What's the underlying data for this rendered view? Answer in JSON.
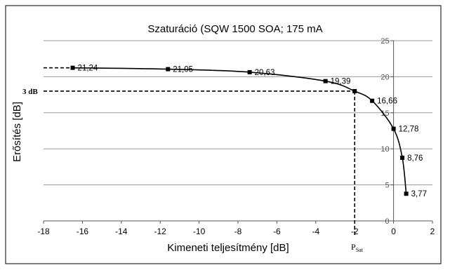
{
  "chart_data": {
    "type": "scatter",
    "title": "Szaturáció (SQW 1500 SOA; 175 mA",
    "xlabel": "Kimeneti teljesítmény [dB]",
    "ylabel": "Erősítés [dB]",
    "xlim": [
      -18,
      2
    ],
    "ylim": [
      0,
      25
    ],
    "x_ticks": [
      -18,
      -16,
      -14,
      -12,
      -10,
      -8,
      -6,
      -4,
      -2,
      0,
      2
    ],
    "y_ticks": [
      0,
      5,
      10,
      15,
      20,
      25
    ],
    "grid": "horizontal",
    "legend": "none",
    "series": [
      {
        "x": [
          -16.5,
          -11.6,
          -7.4,
          -3.5,
          -2.0,
          -1.1,
          0.0,
          0.45,
          0.65
        ],
        "y": [
          21.24,
          21.05,
          20.63,
          19.39,
          18.0,
          16.66,
          12.78,
          8.76,
          3.77
        ],
        "labels": [
          "21,24",
          "21,05",
          "20,63",
          "19,39",
          "",
          "16,66",
          "12,78",
          "8,76",
          "3,77"
        ],
        "marker": "square",
        "color": "#000000"
      }
    ],
    "annotations": {
      "gain_3db_label": "3 dB",
      "psat_main": "P",
      "psat_sub": "Sat",
      "small_signal_gain": 21.24,
      "gain_3db_down": 18.0,
      "psat_x": -2.0
    }
  }
}
